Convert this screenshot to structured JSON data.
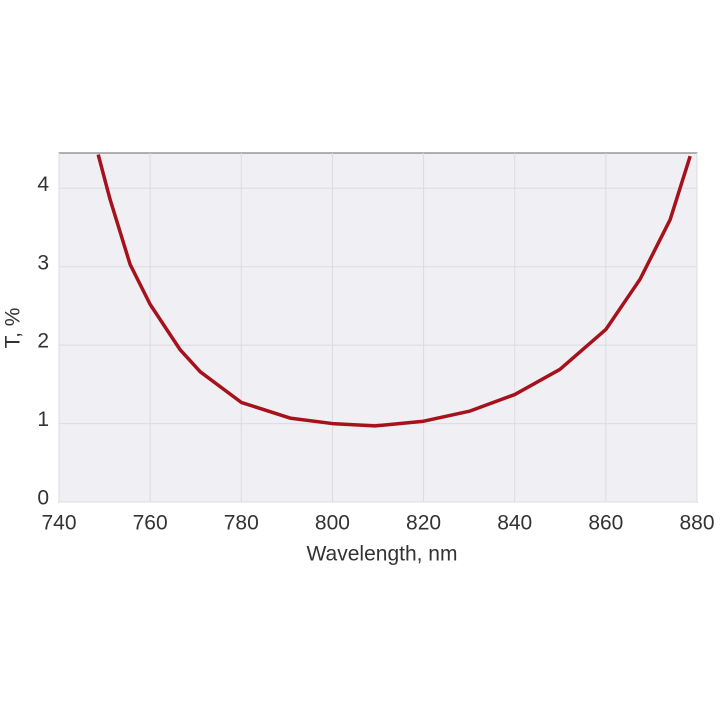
{
  "chart_data": {
    "type": "line",
    "xlabel": "Wavelength, nm",
    "ylabel": "T, %",
    "x": [
      748.6,
      751.2,
      755.6,
      760,
      766.6,
      771,
      780,
      790.7,
      800,
      809.3,
      820,
      830.2,
      840,
      849.9,
      860,
      867.5,
      874.1,
      878.5
    ],
    "series": [
      {
        "color": "#a5121c",
        "values": [
          4.43,
          3.86,
          3.03,
          2.52,
          1.94,
          1.66,
          1.27,
          1.07,
          1.0,
          0.97,
          1.03,
          1.16,
          1.37,
          1.69,
          2.2,
          2.84,
          3.6,
          4.41
        ]
      }
    ],
    "xlim": [
      740,
      880
    ],
    "xticks": [
      740,
      760,
      780,
      800,
      820,
      840,
      860,
      880
    ],
    "ylim": [
      0,
      4.45
    ],
    "yticks": [
      0,
      1,
      2,
      3,
      4
    ],
    "grid": true
  }
}
